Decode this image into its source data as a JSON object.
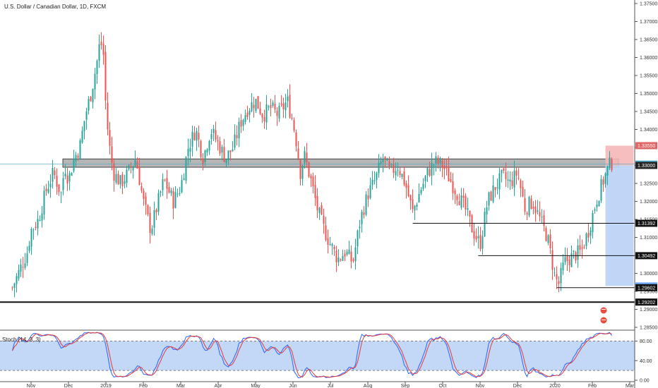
{
  "chart_data": {
    "type": "candlestick",
    "title": "U.S. Dollar / Canadian Dollar, 1D, FXCM",
    "ylim": [
      1.285,
      1.375
    ],
    "y_ticks": [
      1.375,
      1.37,
      1.365,
      1.36,
      1.355,
      1.35,
      1.345,
      1.34,
      1.335,
      1.33,
      1.325,
      1.32,
      1.315,
      1.31,
      1.305,
      1.3,
      1.295,
      1.29,
      1.285
    ],
    "x_ticks": [
      {
        "label": "Nov",
        "month_index": 0
      },
      {
        "label": "Dec",
        "month_index": 1
      },
      {
        "label": "2019",
        "month_index": 2
      },
      {
        "label": "Feb",
        "month_index": 3
      },
      {
        "label": "Mar",
        "month_index": 4
      },
      {
        "label": "Apr",
        "month_index": 5
      },
      {
        "label": "May",
        "month_index": 6
      },
      {
        "label": "Jun",
        "month_index": 7
      },
      {
        "label": "Jul",
        "month_index": 8
      },
      {
        "label": "Aug",
        "month_index": 9
      },
      {
        "label": "Sep",
        "month_index": 10
      },
      {
        "label": "Oct",
        "month_index": 11
      },
      {
        "label": "Nov",
        "month_index": 12
      },
      {
        "label": "Dec",
        "month_index": 13
      },
      {
        "label": "2020",
        "month_index": 14
      },
      {
        "label": "Feb",
        "month_index": 15
      },
      {
        "label": "Mar",
        "month_index": 16
      }
    ],
    "price_path": [
      [
        -0.5,
        1.296
      ],
      [
        -0.3,
        1.301
      ],
      [
        -0.1,
        1.306
      ],
      [
        0.0,
        1.312
      ],
      [
        0.2,
        1.315
      ],
      [
        0.4,
        1.323
      ],
      [
        0.6,
        1.328
      ],
      [
        0.8,
        1.322
      ],
      [
        0.9,
        1.33
      ],
      [
        1.0,
        1.326
      ],
      [
        1.15,
        1.332
      ],
      [
        1.3,
        1.335
      ],
      [
        1.45,
        1.344
      ],
      [
        1.6,
        1.35
      ],
      [
        1.75,
        1.358
      ],
      [
        1.85,
        1.365
      ],
      [
        1.95,
        1.36
      ],
      [
        2.0,
        1.345
      ],
      [
        2.1,
        1.335
      ],
      [
        2.2,
        1.328
      ],
      [
        2.4,
        1.325
      ],
      [
        2.6,
        1.328
      ],
      [
        2.8,
        1.332
      ],
      [
        3.0,
        1.32
      ],
      [
        3.2,
        1.312
      ],
      [
        3.4,
        1.32
      ],
      [
        3.55,
        1.326
      ],
      [
        3.8,
        1.32
      ],
      [
        4.0,
        1.324
      ],
      [
        4.2,
        1.335
      ],
      [
        4.4,
        1.34
      ],
      [
        4.6,
        1.332
      ],
      [
        4.8,
        1.34
      ],
      [
        5.0,
        1.336
      ],
      [
        5.2,
        1.332
      ],
      [
        5.4,
        1.335
      ],
      [
        5.6,
        1.342
      ],
      [
        5.8,
        1.346
      ],
      [
        6.0,
        1.348
      ],
      [
        6.2,
        1.344
      ],
      [
        6.4,
        1.346
      ],
      [
        6.6,
        1.344
      ],
      [
        6.85,
        1.348
      ],
      [
        7.0,
        1.342
      ],
      [
        7.1,
        1.336
      ],
      [
        7.2,
        1.328
      ],
      [
        7.3,
        1.333
      ],
      [
        7.5,
        1.325
      ],
      [
        7.65,
        1.318
      ],
      [
        7.8,
        1.313
      ],
      [
        8.0,
        1.308
      ],
      [
        8.2,
        1.304
      ],
      [
        8.4,
        1.306
      ],
      [
        8.6,
        1.303
      ],
      [
        8.8,
        1.315
      ],
      [
        9.0,
        1.322
      ],
      [
        9.2,
        1.326
      ],
      [
        9.4,
        1.332
      ],
      [
        9.6,
        1.328
      ],
      [
        9.8,
        1.33
      ],
      [
        10.0,
        1.325
      ],
      [
        10.2,
        1.317
      ],
      [
        10.4,
        1.323
      ],
      [
        10.6,
        1.328
      ],
      [
        10.8,
        1.331
      ],
      [
        11.0,
        1.33
      ],
      [
        11.2,
        1.326
      ],
      [
        11.4,
        1.322
      ],
      [
        11.6,
        1.318
      ],
      [
        11.8,
        1.312
      ],
      [
        12.0,
        1.308
      ],
      [
        12.2,
        1.32
      ],
      [
        12.4,
        1.324
      ],
      [
        12.6,
        1.327
      ],
      [
        12.8,
        1.325
      ],
      [
        13.0,
        1.328
      ],
      [
        13.2,
        1.318
      ],
      [
        13.4,
        1.32
      ],
      [
        13.6,
        1.315
      ],
      [
        13.8,
        1.31
      ],
      [
        14.0,
        1.299
      ],
      [
        14.1,
        1.297
      ],
      [
        14.25,
        1.303
      ],
      [
        14.5,
        1.305
      ],
      [
        14.7,
        1.306
      ],
      [
        14.9,
        1.312
      ],
      [
        15.1,
        1.32
      ],
      [
        15.3,
        1.326
      ],
      [
        15.45,
        1.33
      ],
      [
        15.55,
        1.331
      ]
    ],
    "resistance_zone": {
      "from": 1.3295,
      "to": 1.3318,
      "x_start": 0.85,
      "x_end": 15.7
    },
    "horizontal_levels": [
      {
        "label": "1.31392",
        "value": 1.31392,
        "x_start": 10.2
      },
      {
        "label": "1.30492",
        "value": 1.30492,
        "x_start": 11.95
      },
      {
        "label": "1.29602",
        "value": 1.29602,
        "x_start": 14.05
      },
      {
        "label": "1.29202",
        "value": 1.29202,
        "x_start": -1.0
      }
    ],
    "price_labels": [
      {
        "label": "1.33550",
        "value": 1.3355,
        "color": "#e06666"
      },
      {
        "label": "1.33036",
        "value": 1.33036,
        "color": "#4aa8c8"
      },
      {
        "label": "1.33000",
        "value": 1.33,
        "color": "#222222"
      },
      {
        "label": "1.31392",
        "value": 1.31392,
        "color": "#111111"
      },
      {
        "label": "1.30492",
        "value": 1.30492,
        "color": "#111111"
      },
      {
        "label": "1.29650",
        "value": 1.2965,
        "color": "#6fa8ff"
      },
      {
        "label": "1.29602",
        "value": 1.29602,
        "color": "#111111"
      },
      {
        "label": "1.29202",
        "value": 1.29202,
        "color": "#111111"
      }
    ],
    "current_price_line": 1.33036,
    "position": {
      "entry": 1.33,
      "stop": 1.3355,
      "target": 1.2965,
      "x_start": 15.35,
      "x_end": 16.1
    },
    "stochastic": {
      "label": "Stoch (14, 3, 3)",
      "levels": [
        80,
        20
      ],
      "y_ticks": [
        80.0,
        40.0,
        0.0
      ],
      "colors": {
        "k": "#2962ff",
        "d": "#e53935",
        "band": "#bcd4f5"
      }
    },
    "colors": {
      "up": "#26a69a",
      "down": "#ef5350",
      "zone_fill": "#9e9e9e",
      "stop_zone": "#f5b7b7",
      "target_zone": "#bcd4f5",
      "price_line": "#4aa8c8"
    }
  }
}
